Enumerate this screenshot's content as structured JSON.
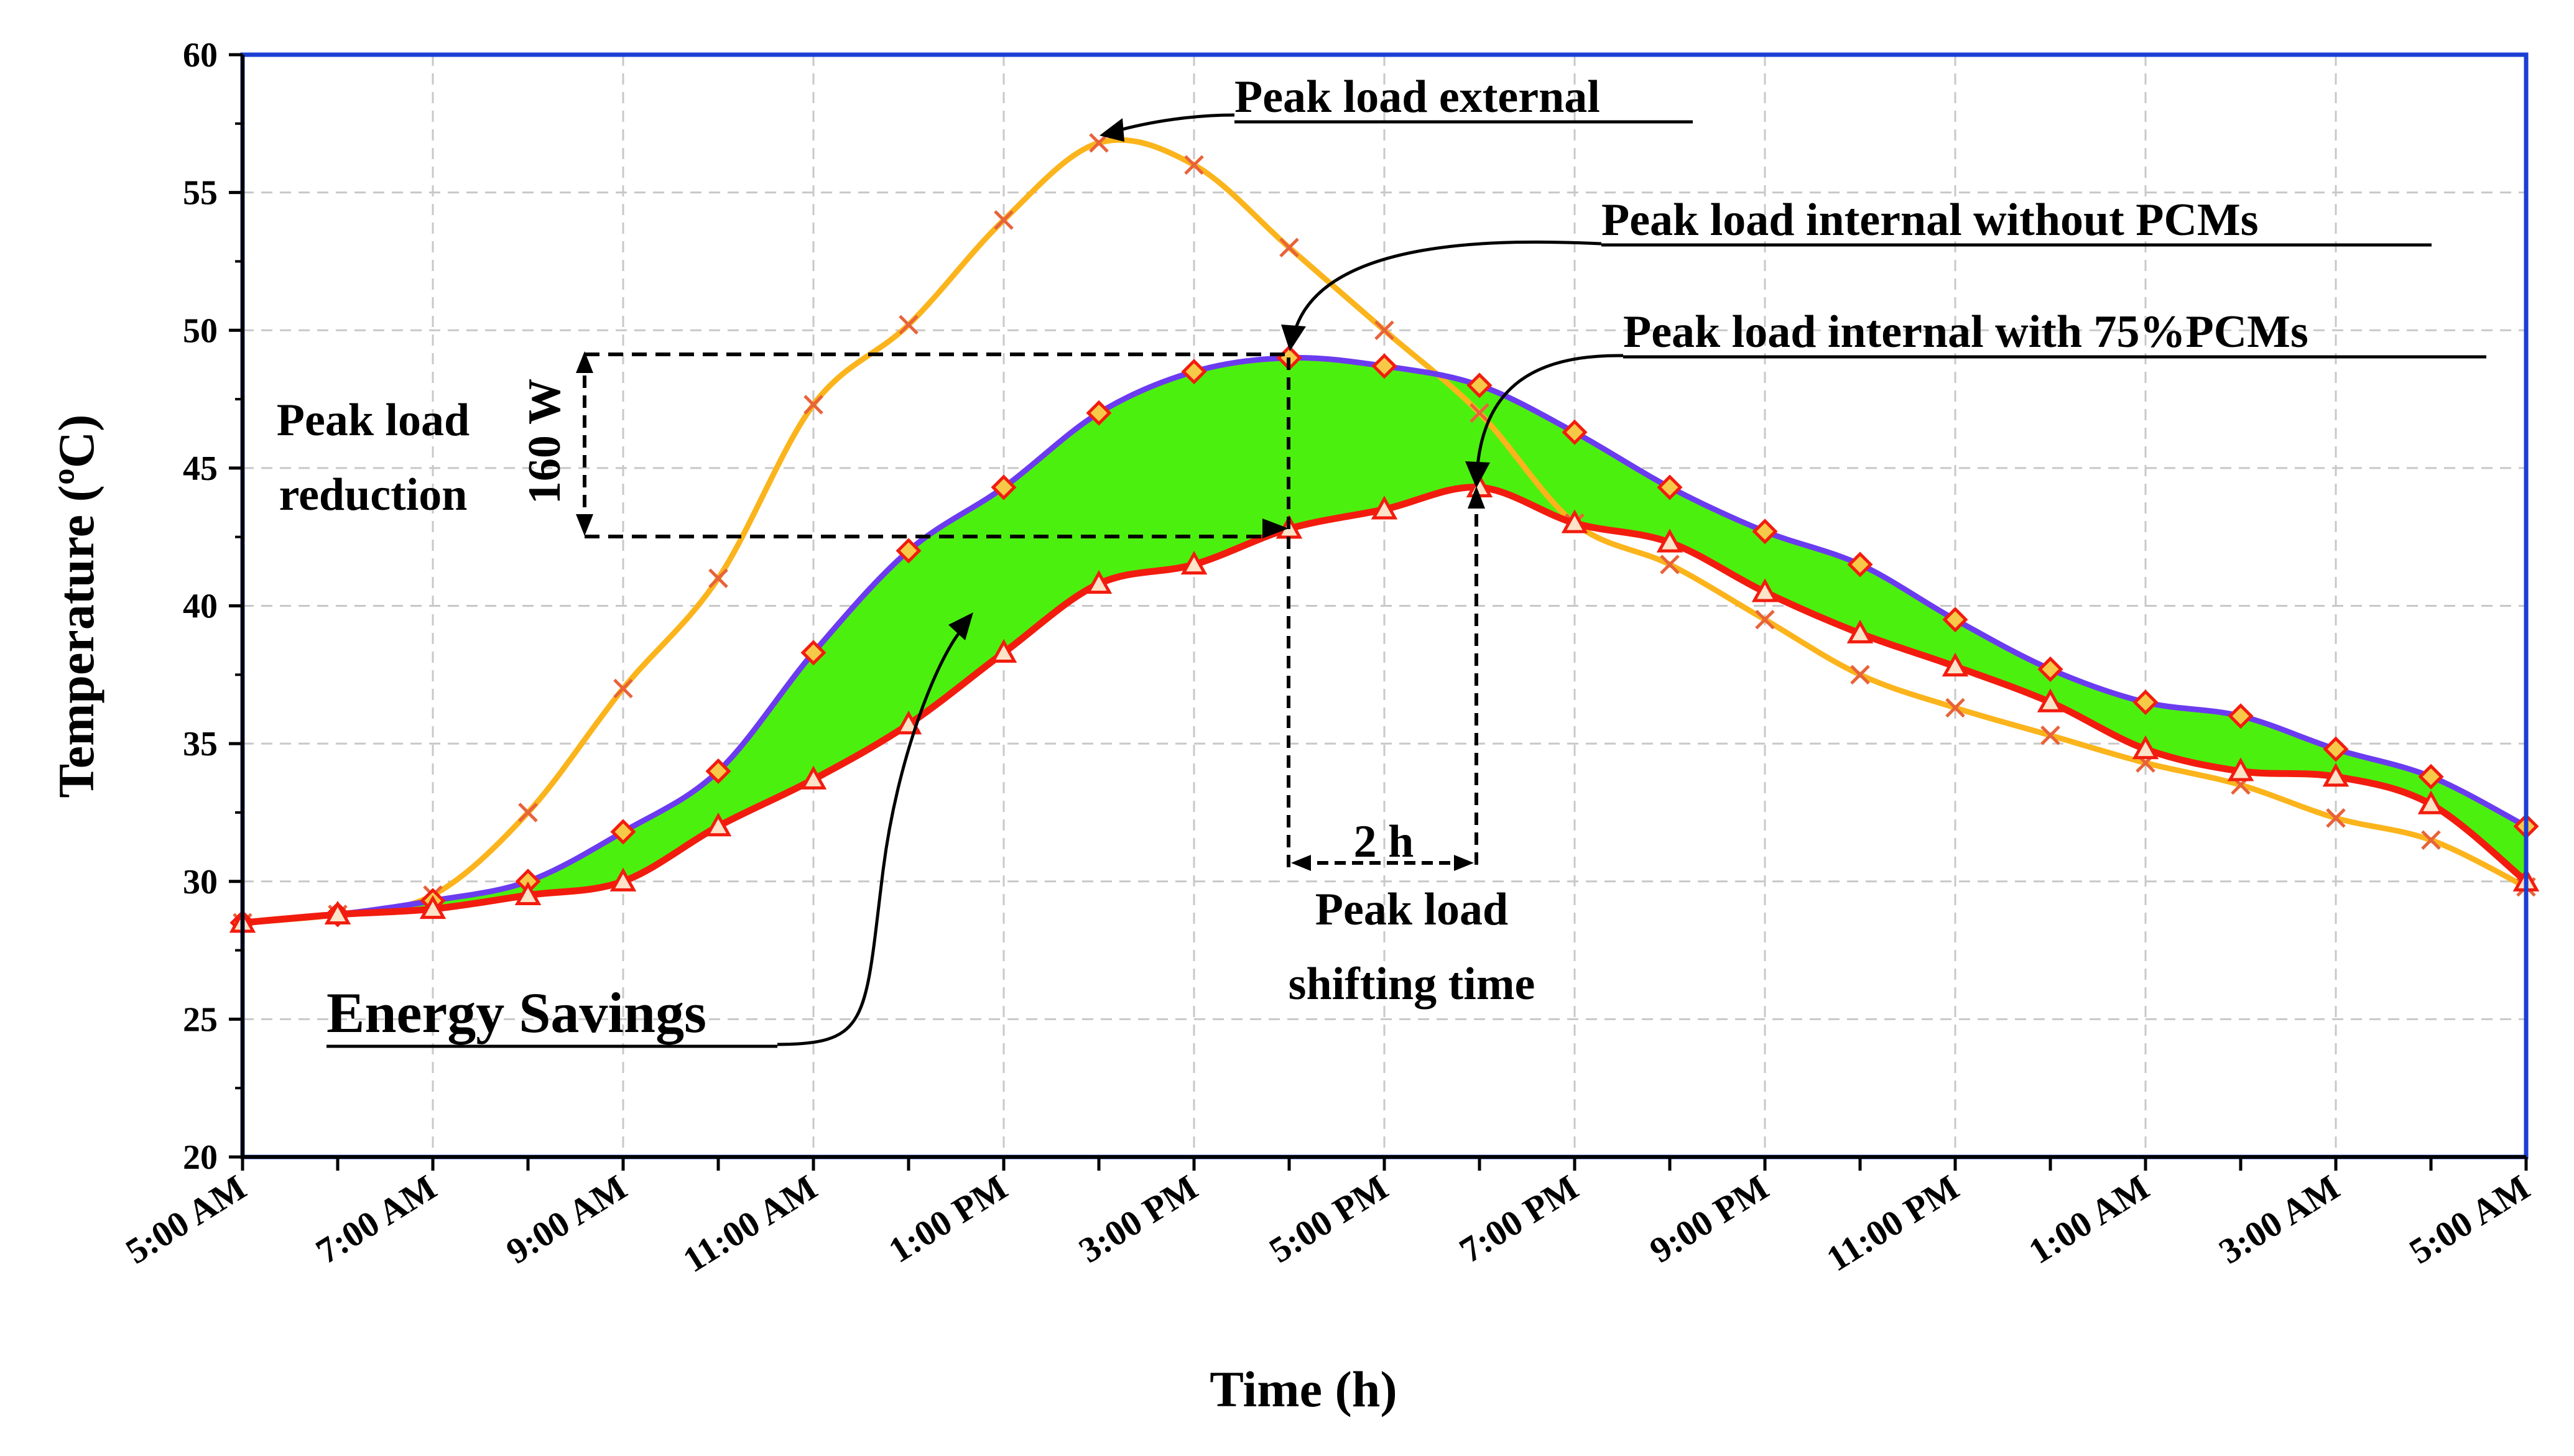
{
  "chart_data": {
    "type": "line",
    "title": "",
    "xlabel": "Time (h)",
    "ylabel": "Temperature (ºC)",
    "ylim": [
      20,
      60
    ],
    "yticks": [
      "60",
      "55",
      "50",
      "45",
      "40",
      "35",
      "30",
      "25",
      "20"
    ],
    "x_tick_labels": [
      "5:00 AM",
      "7:00 AM",
      "9:00 AM",
      "11:00 AM",
      "1:00 PM",
      "3:00 PM",
      "5:00 PM",
      "7:00 PM",
      "9:00 PM",
      "11:00 PM",
      "1:00 AM",
      "3:00 AM",
      "5:00 AM"
    ],
    "grid": true,
    "fill_between": {
      "label": "Energy Savings",
      "upper": "Peak load internal without PCMs",
      "lower": "Peak load internal with 75%PCMs",
      "color": "#4cf00e"
    },
    "series": [
      {
        "name": "Peak load external",
        "color": "#fbb41b",
        "marker": "x",
        "values": [
          28.5,
          28.8,
          29.5,
          32.5,
          37.0,
          41.0,
          47.3,
          50.2,
          54.0,
          56.8,
          56.0,
          53.0,
          50.0,
          47.0,
          43.0,
          41.5,
          39.5,
          37.5,
          36.3,
          35.3,
          34.3,
          33.5,
          32.3,
          31.5,
          29.8
        ]
      },
      {
        "name": "Peak load internal without PCMs",
        "color": "#6b3bf0",
        "marker": "diamond",
        "values": [
          28.5,
          28.8,
          29.3,
          30.0,
          31.8,
          34.0,
          38.3,
          42.0,
          44.3,
          47.0,
          48.5,
          49.0,
          48.7,
          48.0,
          46.3,
          44.3,
          42.7,
          41.5,
          39.5,
          37.7,
          36.5,
          36.0,
          34.8,
          33.8,
          32.0
        ]
      },
      {
        "name": "Peak load internal with 75%PCMs",
        "color": "#f21c0e",
        "marker": "triangle",
        "values": [
          28.5,
          28.8,
          29.0,
          29.5,
          30.0,
          32.0,
          33.7,
          35.7,
          38.3,
          40.8,
          41.5,
          42.8,
          43.5,
          44.3,
          43.0,
          42.3,
          40.5,
          39.0,
          37.8,
          36.5,
          34.8,
          34.0,
          33.8,
          32.8,
          30.0
        ]
      }
    ],
    "annotations": {
      "peak_external": "Peak load external",
      "peak_internal_without": "Peak load internal without PCMs",
      "peak_internal_with": "Peak load internal with 75%PCMs",
      "reduction_line1": "Peak load",
      "reduction_line2": "reduction",
      "reduction_value": "160 W",
      "shift_value": "2 h",
      "shift_line1": "Peak load",
      "shift_line2": "shifting time",
      "energy_savings": "Energy Savings"
    },
    "colors": {
      "axis_frame": "#1a3fd4",
      "grid": "#c8c8c8",
      "marker_fill": "#f7c948"
    }
  }
}
